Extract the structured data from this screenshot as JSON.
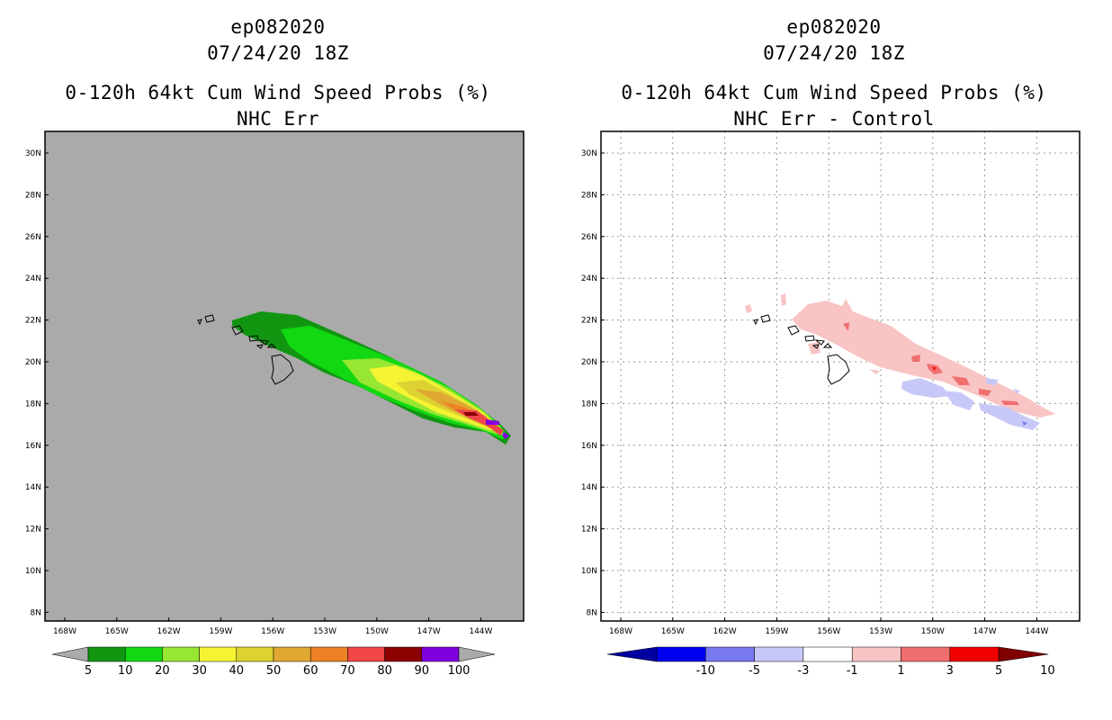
{
  "left": {
    "storm_id": "ep082020",
    "datetime": "07/24/20 18Z",
    "title": "0-120h 64kt Cum Wind Speed Probs (%)",
    "subtitle": "NHC Err",
    "lat_labels": [
      "30N",
      "28N",
      "26N",
      "24N",
      "22N",
      "20N",
      "18N",
      "16N",
      "14N",
      "12N",
      "10N",
      "8N"
    ],
    "lon_labels": [
      "168W",
      "165W",
      "162W",
      "159W",
      "156W",
      "153W",
      "150W",
      "147W",
      "144W"
    ],
    "colorbar_labels": [
      "5",
      "10",
      "20",
      "30",
      "40",
      "50",
      "60",
      "70",
      "80",
      "90",
      "100"
    ],
    "colorbar_colors": [
      "#129612",
      "#12d812",
      "#96e632",
      "#f4f432",
      "#dcd232",
      "#e0a832",
      "#ec8224",
      "#f04646",
      "#8c0000",
      "#8000e0"
    ],
    "background_color": "#aaaaaa"
  },
  "right": {
    "storm_id": "ep082020",
    "datetime": "07/24/20 18Z",
    "title": "0-120h 64kt Cum Wind Speed Probs (%)",
    "subtitle": "NHC Err - Control",
    "lat_labels": [
      "30N",
      "28N",
      "26N",
      "24N",
      "22N",
      "20N",
      "18N",
      "16N",
      "14N",
      "12N",
      "10N",
      "8N"
    ],
    "lon_labels": [
      "168W",
      "165W",
      "162W",
      "159W",
      "156W",
      "153W",
      "150W",
      "147W",
      "144W"
    ],
    "colorbar_labels": [
      "-10",
      "-5",
      "-3",
      "-1",
      "1",
      "3",
      "5",
      "10"
    ],
    "colorbar_colors": [
      "#0000a0",
      "#0000f0",
      "#7878f0",
      "#c8c8f8",
      "#ffffff",
      "#f8c4c4",
      "#f06e6e",
      "#f00000",
      "#800000"
    ]
  }
}
